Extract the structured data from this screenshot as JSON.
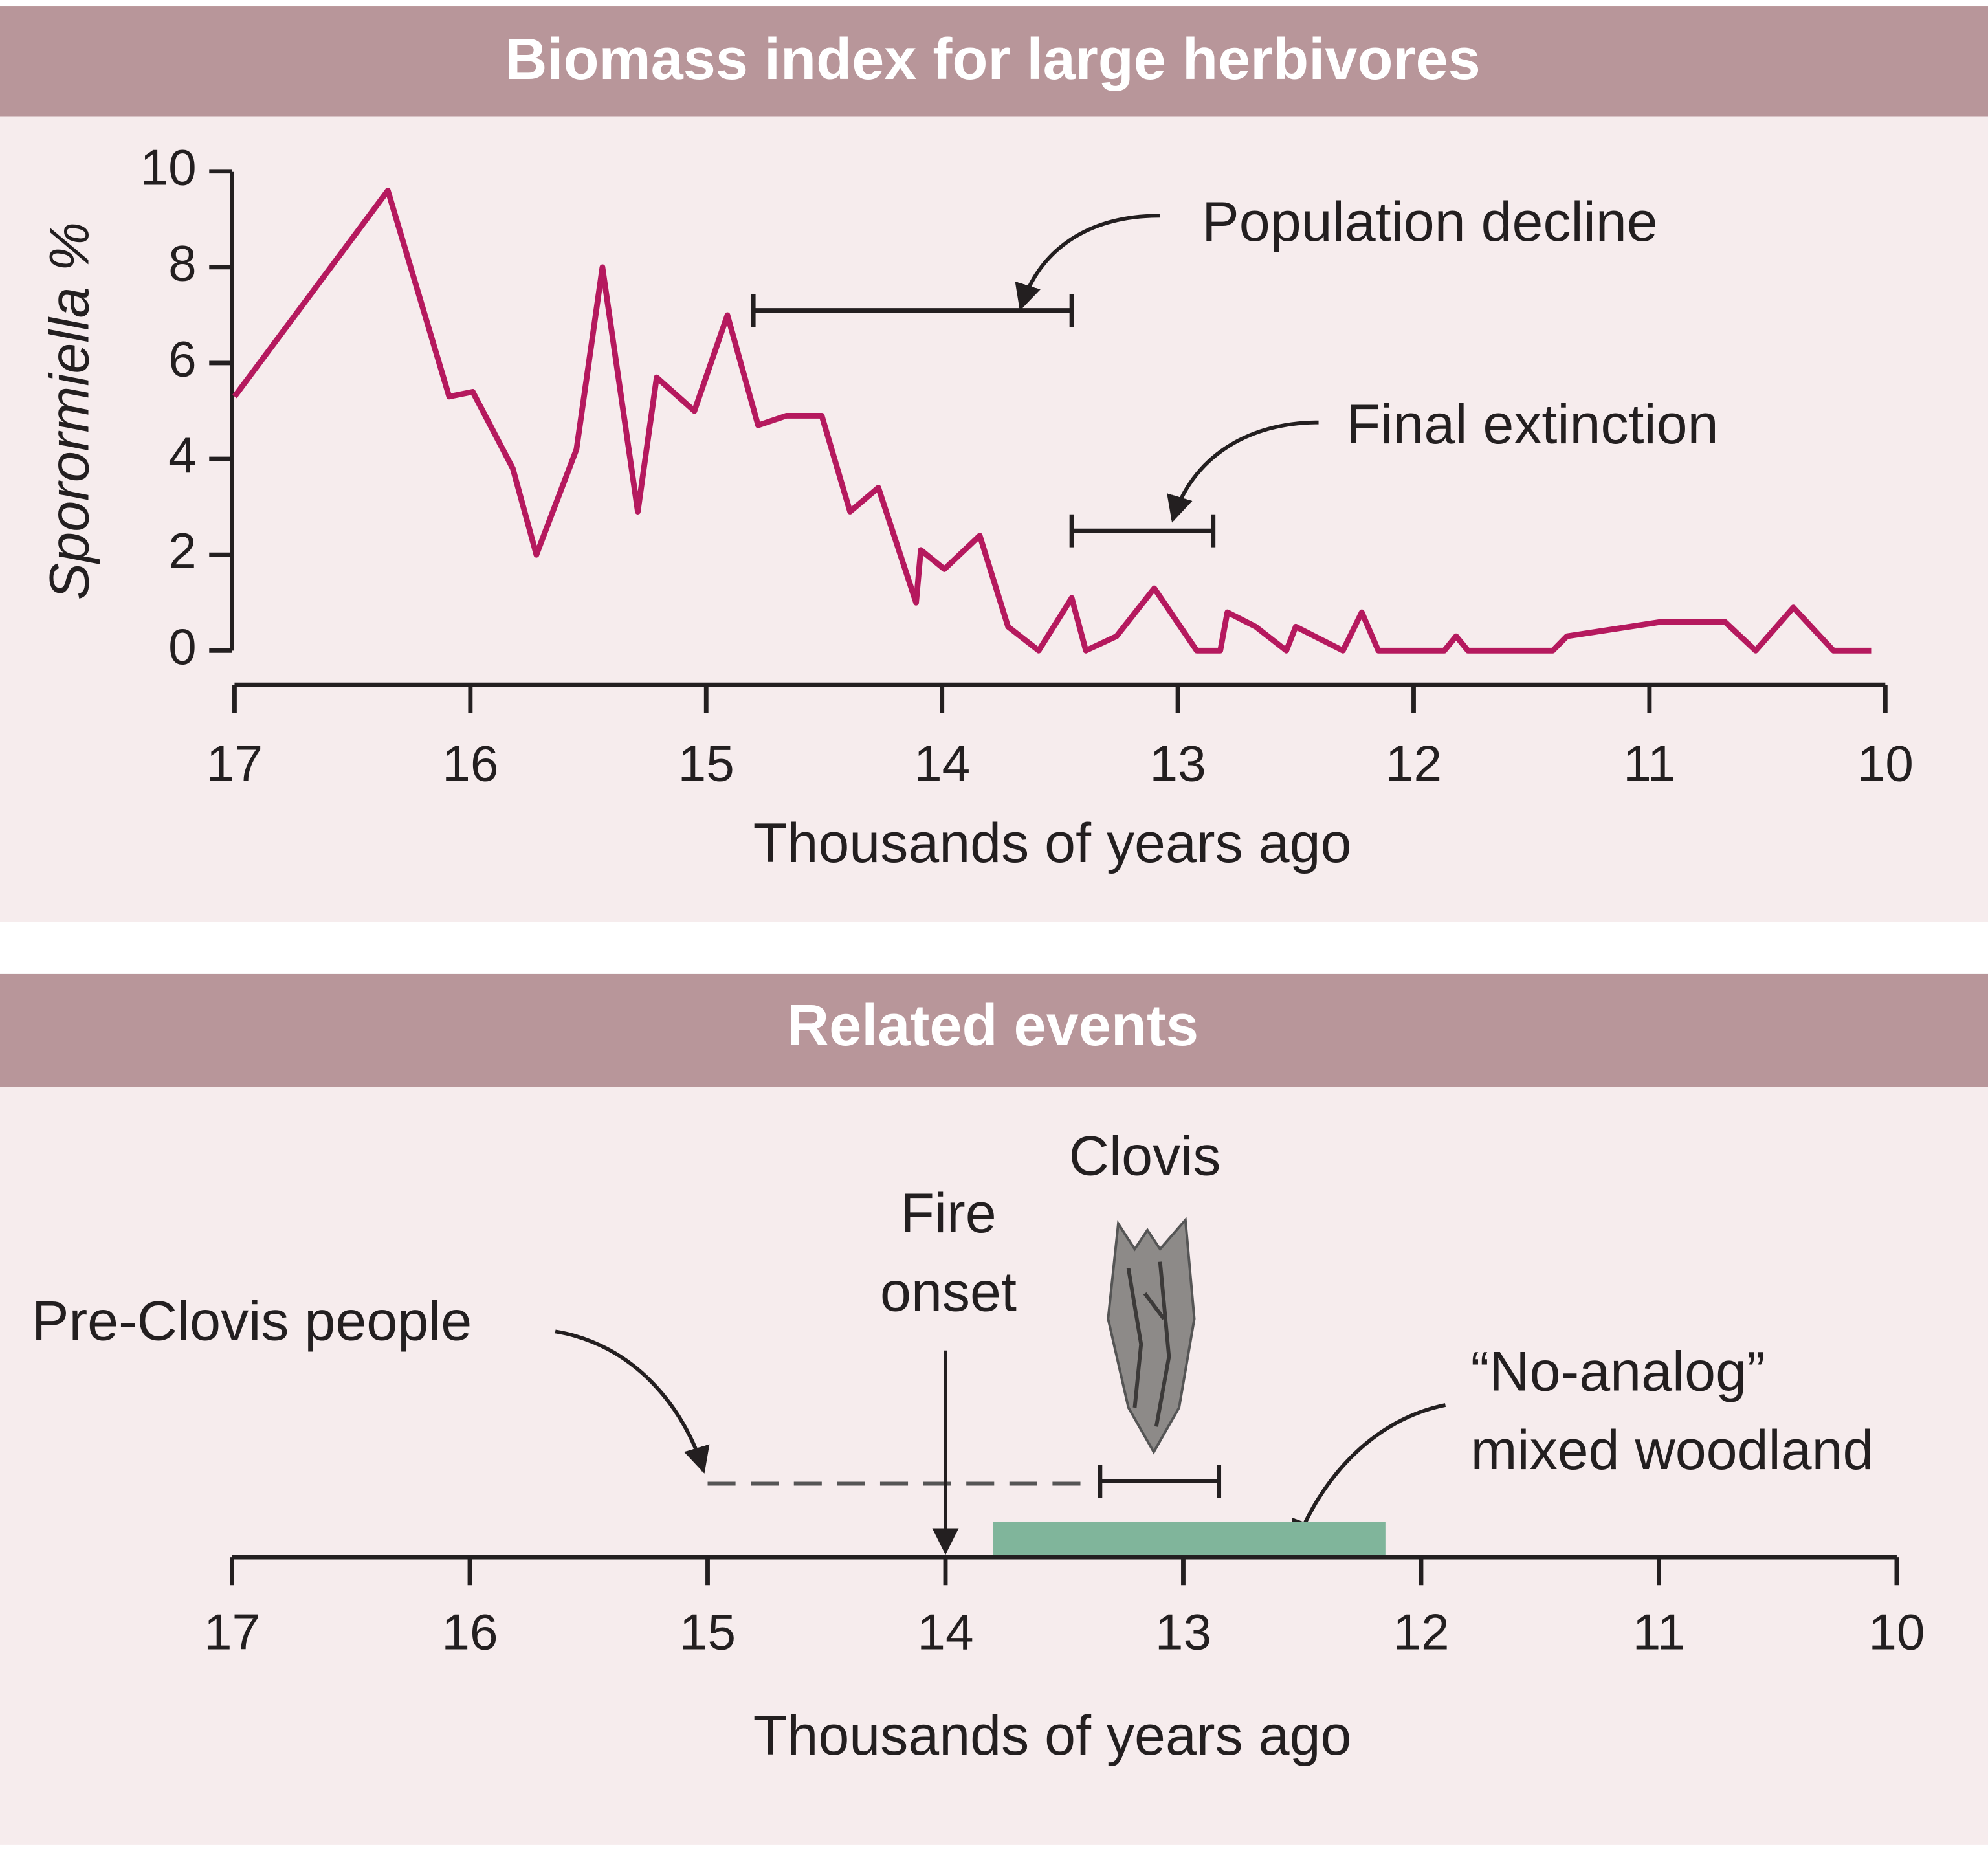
{
  "chart_data": [
    {
      "type": "line",
      "title": "Biomass index for large herbivores",
      "xlabel": "Thousands of years ago",
      "ylabel": "Sporormiella %",
      "xlim": [
        17,
        10
      ],
      "xticks": [
        17,
        16,
        15,
        14,
        13,
        12,
        11,
        10
      ],
      "ylim": [
        0,
        10
      ],
      "yticks": [
        0,
        2,
        4,
        6,
        8,
        10
      ],
      "color": "#b5195e",
      "x": [
        17.0,
        16.35,
        16.09,
        15.99,
        15.82,
        15.72,
        15.55,
        15.44,
        15.29,
        15.21,
        15.05,
        14.91,
        14.78,
        14.66,
        14.51,
        14.39,
        14.27,
        14.11,
        14.09,
        13.99,
        13.84,
        13.72,
        13.59,
        13.45,
        13.39,
        13.26,
        13.1,
        12.92,
        12.82,
        12.79,
        12.67,
        12.54,
        12.5,
        12.3,
        12.22,
        12.15,
        11.87,
        11.82,
        11.77,
        11.41,
        11.35,
        10.95,
        10.68,
        10.55,
        10.39,
        10.22,
        10.06
      ],
      "values": [
        5.3,
        9.6,
        5.3,
        5.4,
        3.8,
        2.0,
        4.2,
        8.0,
        2.9,
        5.7,
        5.0,
        7.0,
        4.7,
        4.9,
        4.9,
        2.9,
        3.4,
        1.0,
        2.1,
        1.7,
        2.4,
        0.5,
        0,
        1.1,
        0,
        0.3,
        1.3,
        0,
        0,
        0.8,
        0.5,
        0,
        0.5,
        0,
        0.8,
        0,
        0,
        0.3,
        0,
        0,
        0.3,
        0.6,
        0.6,
        0,
        0.9,
        0,
        0
      ],
      "annotations": [
        {
          "text": "Population decline",
          "x": [
            14.8,
            13.45
          ],
          "y": 7.1
        },
        {
          "text": "Final extinction",
          "x": [
            13.45,
            12.85
          ],
          "y": 2.5
        }
      ]
    },
    {
      "type": "timeline",
      "title": "Related events",
      "xlabel": "Thousands of years ago",
      "xlim": [
        17,
        10
      ],
      "xticks": [
        17,
        16,
        15,
        14,
        13,
        12,
        11,
        10
      ],
      "events": [
        {
          "label": [
            "Pre-Clovis people"
          ],
          "start": 15.0,
          "end": 13.4,
          "style": "dashed"
        },
        {
          "label": [
            "Fire",
            "onset"
          ],
          "at": 14.0
        },
        {
          "label": [
            "Clovis"
          ],
          "start": 13.35,
          "end": 12.85
        },
        {
          "label": [
            "“No-analog”",
            "mixed woodland"
          ],
          "start": 13.8,
          "end": 12.15,
          "color": "#80b59b"
        }
      ]
    }
  ]
}
